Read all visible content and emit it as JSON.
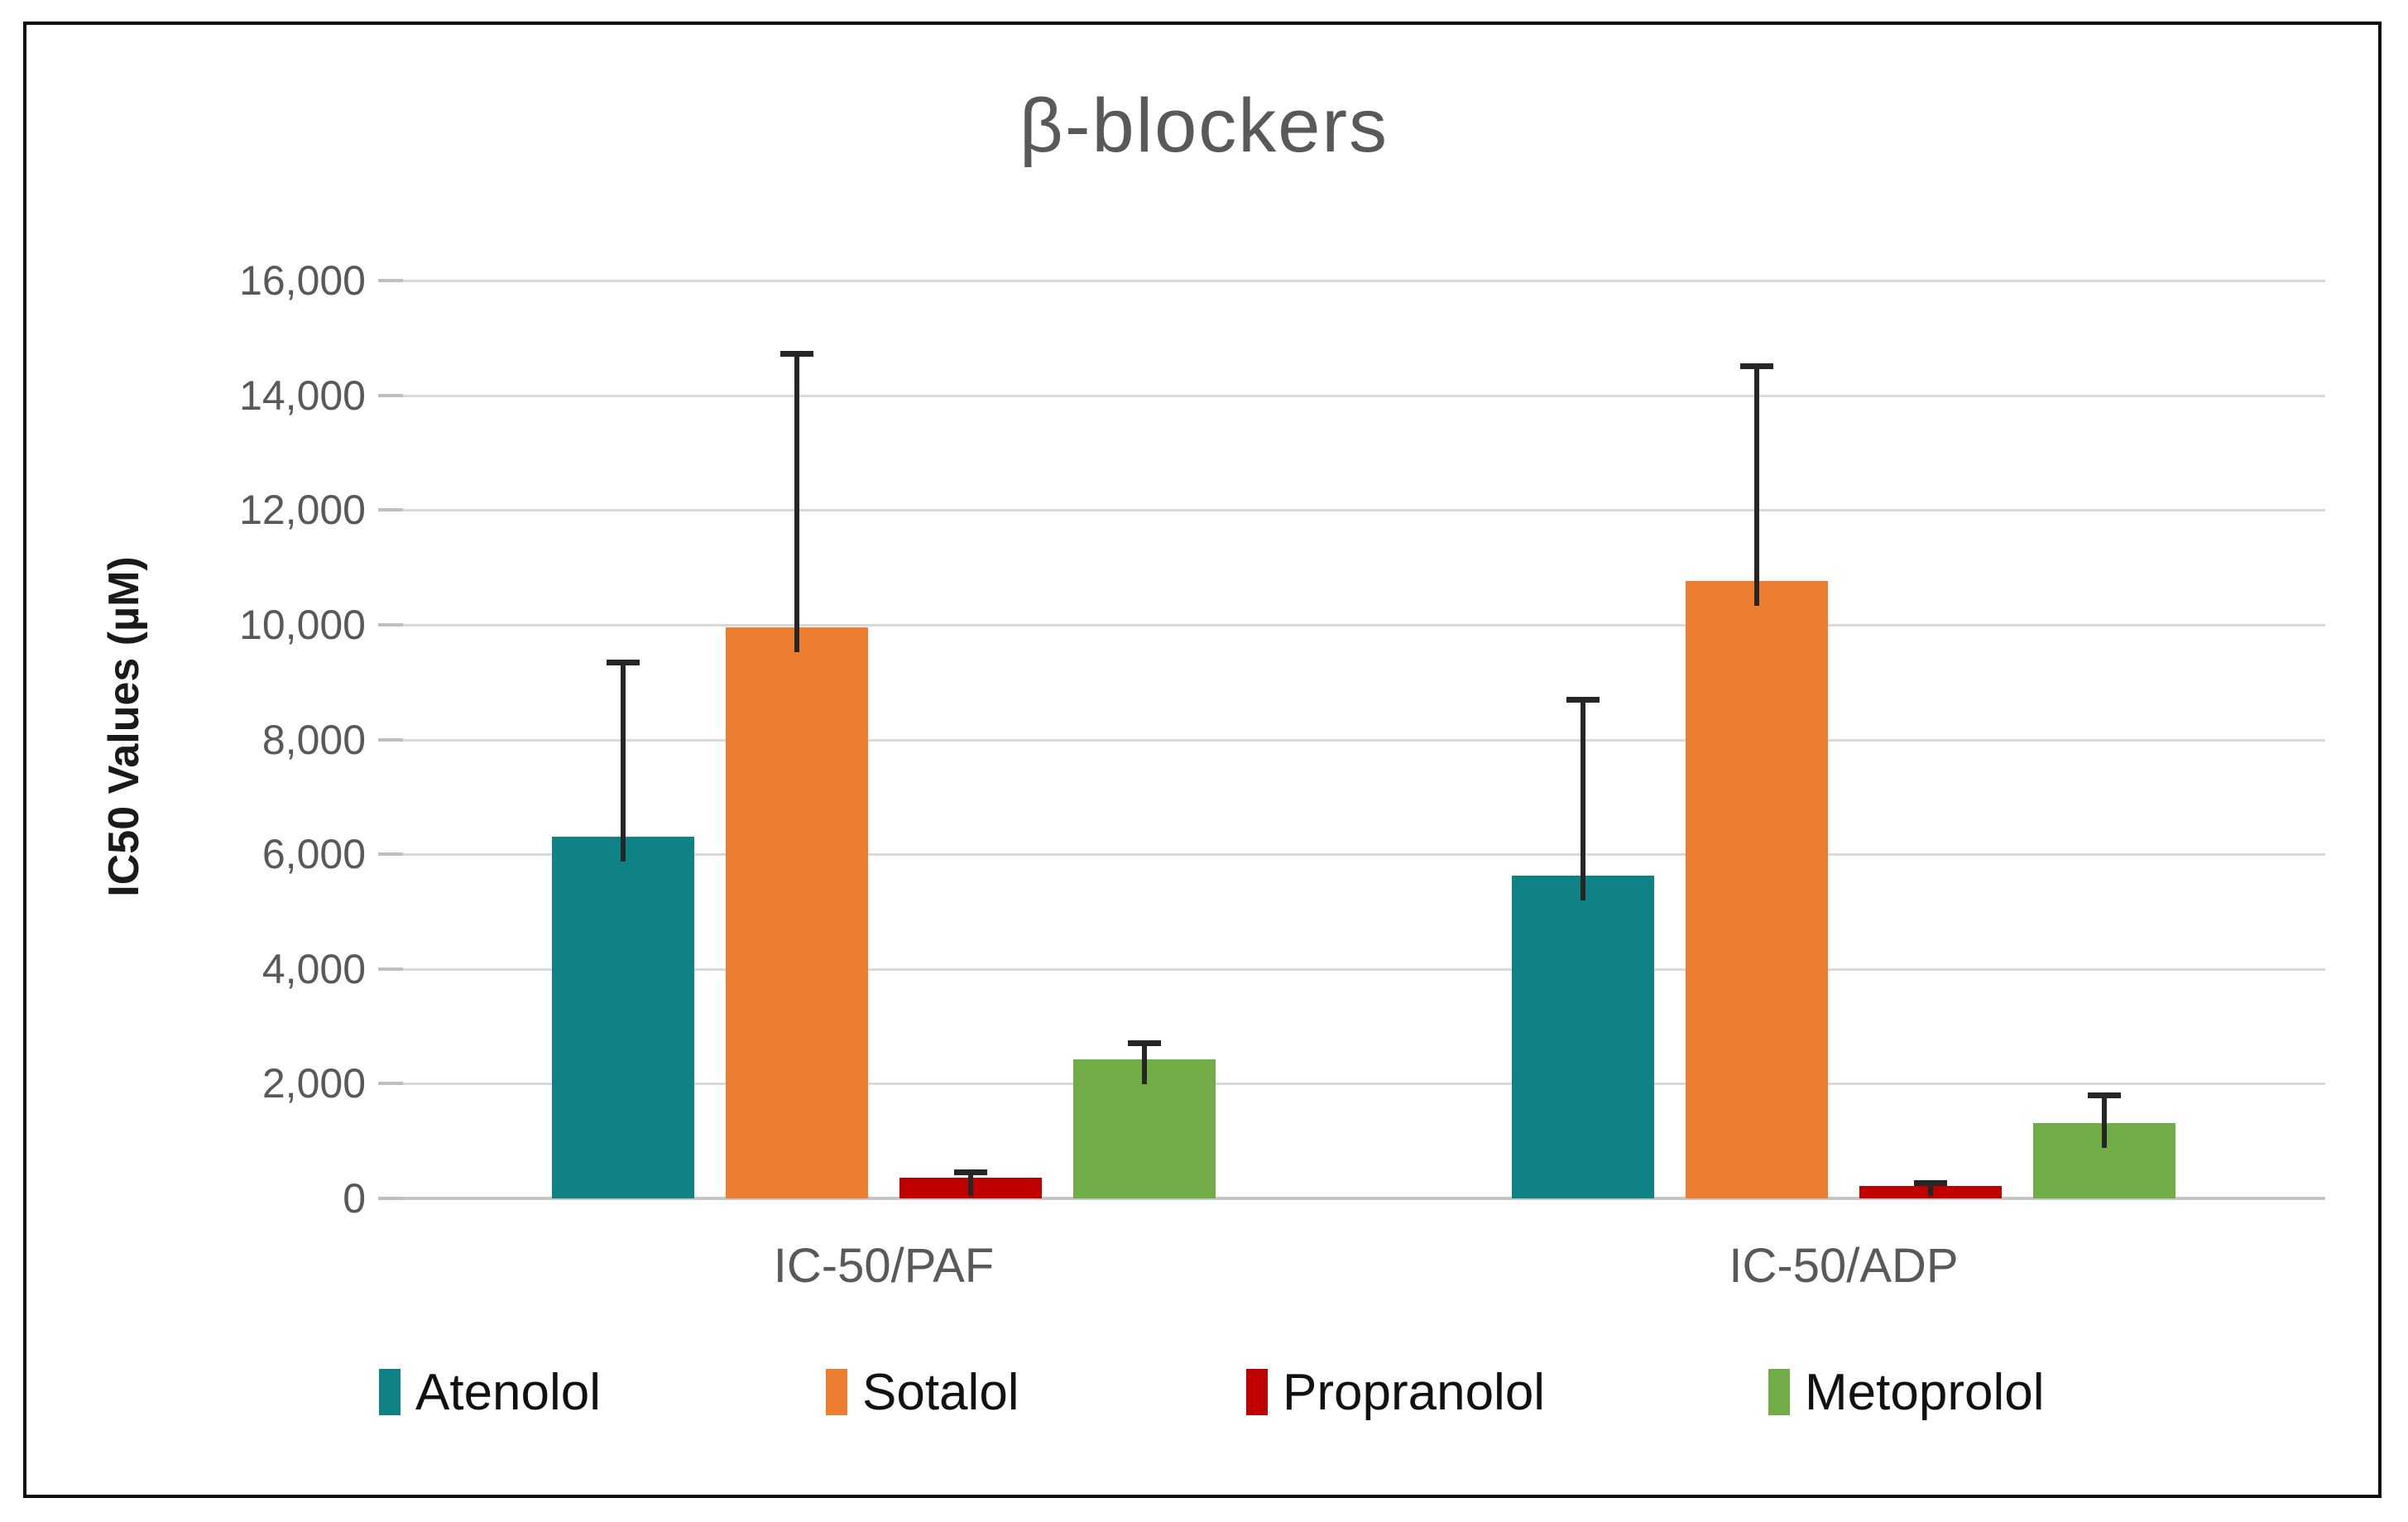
{
  "title": "β-blockers",
  "y_axis_title": "IC50 Values (µM)",
  "chart_data": {
    "type": "bar",
    "categories": [
      "IC-50/PAF",
      "IC-50/ADP"
    ],
    "series": [
      {
        "name": "Atenolol",
        "color": "#0E8284",
        "values": [
          6300,
          5630
        ],
        "error_plus": [
          3050,
          3070
        ]
      },
      {
        "name": "Sotalol",
        "color": "#ED7D31",
        "values": [
          9950,
          10760
        ],
        "error_plus": [
          4780,
          3750
        ]
      },
      {
        "name": "Propranolol",
        "color": "#C00000",
        "values": [
          360,
          215
        ],
        "error_plus": [
          100,
          65
        ]
      },
      {
        "name": "Metoprolol",
        "color": "#70AD47",
        "values": [
          2420,
          1310
        ],
        "error_plus": [
          290,
          490
        ]
      }
    ],
    "title": "β-blockers",
    "xlabel": "",
    "ylabel": "IC50 Values (µM)",
    "ylim": [
      0,
      16000
    ],
    "ytick_step": 2000,
    "ytick_labels": [
      "0",
      "2,000",
      "4,000",
      "6,000",
      "8,000",
      "10,000",
      "12,000",
      "14,000",
      "16,000"
    ],
    "grid": true,
    "legend_position": "bottom",
    "error_bars": "plus-direction, black caps"
  },
  "colors": {
    "grid": "#D9D9D9",
    "axis_line": "#C6C6C6",
    "tick": "#BFBFBF",
    "text_muted": "#595959",
    "text_dark": "#1A1A1A",
    "error_bar": "#262626",
    "frame": "#0D0D0D",
    "background": "#FFFFFF"
  }
}
